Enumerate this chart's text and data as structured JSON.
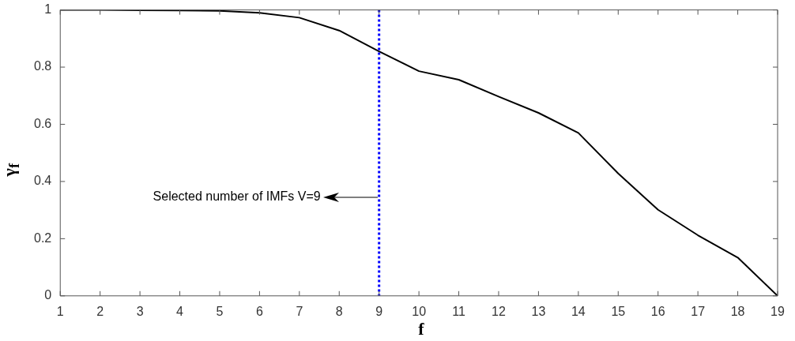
{
  "chart_data": {
    "type": "line",
    "xlabel": "f",
    "ylabel": "γ$_{f}$",
    "x": [
      1,
      2,
      3,
      4,
      5,
      6,
      7,
      8,
      9,
      10,
      11,
      12,
      13,
      14,
      15,
      16,
      17,
      18,
      19
    ],
    "series": [
      {
        "color": "#000000",
        "values": [
          1,
          1,
          0.999,
          0.998,
          0.997,
          0.99,
          0.973,
          0.928,
          0.855,
          0.786,
          0.756,
          0.697,
          0.64,
          0.57,
          0.428,
          0.301,
          0.212,
          0.134,
          0
        ]
      }
    ],
    "xlim": [
      1,
      19
    ],
    "xticks": [
      1,
      2,
      3,
      4,
      5,
      6,
      7,
      8,
      9,
      10,
      11,
      12,
      13,
      14,
      15,
      16,
      17,
      18,
      19
    ],
    "ylim": [
      0,
      1
    ],
    "yticks": [
      0,
      0.2,
      0.4,
      0.6,
      0.8,
      1
    ],
    "ref_lines": [
      {
        "axis": "x",
        "value": 9,
        "color": "#0000ff",
        "line_style": "dotted"
      }
    ],
    "annotations": [
      "Selected number of IMFs V=9"
    ],
    "grid": false,
    "legend": false,
    "marker": "none",
    "line_style": "solid"
  }
}
